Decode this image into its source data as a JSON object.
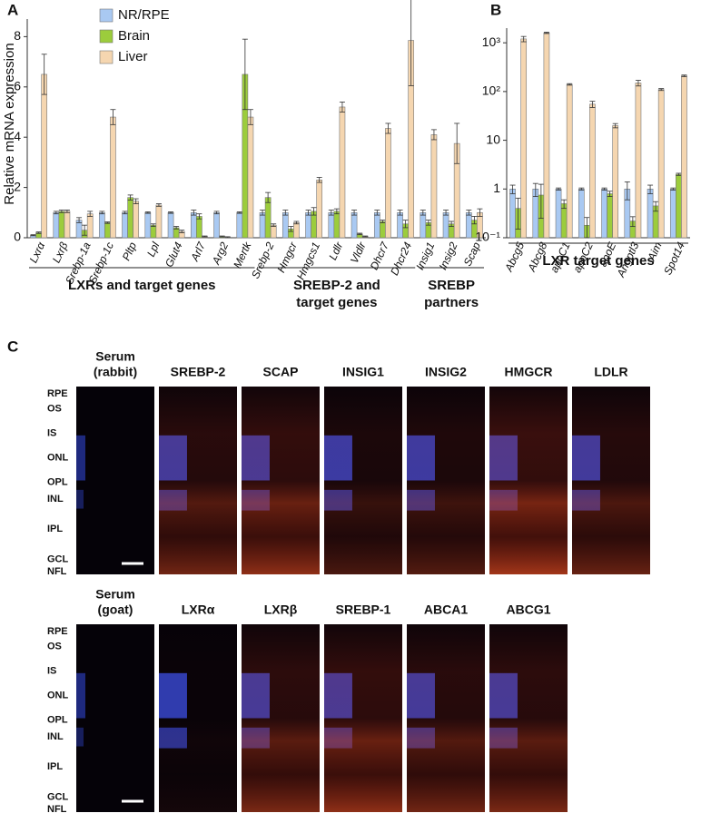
{
  "chart_data": [
    {
      "type": "bar",
      "panel_label": "A",
      "y_label": "Relative mRNA expression",
      "ylim": [
        0,
        8.7
      ],
      "yticks": [
        0,
        2,
        4,
        6,
        8
      ],
      "legend": "top-left",
      "groups": [
        {
          "label": [
            "LXRs and target genes"
          ],
          "categories": [
            "Lxrα",
            "Lxrβ",
            "Srebp-1a",
            "Srebp-1c",
            "Pltp",
            "Lpl",
            "Glut4",
            "Arl7",
            "Arg2",
            "Mertk"
          ]
        },
        {
          "label": [
            "SREBP-2 and",
            "target genes"
          ],
          "categories": [
            "Srebp-2",
            "Hmgcr",
            "Hmgcs1",
            "Ldlr",
            "Vldlr",
            "Dhcr7",
            "Dhcr24"
          ]
        },
        {
          "label": [
            "SREBP",
            "partners"
          ],
          "categories": [
            "Insig1",
            "Insig2",
            "Scap"
          ]
        }
      ],
      "series": [
        {
          "name": "NR/RPE",
          "color": "#a9c9f2",
          "values": [
            0.1,
            1.0,
            0.7,
            1.0,
            1.0,
            1.0,
            1.0,
            1.0,
            1.0,
            1.0,
            1.0,
            1.0,
            1.0,
            1.0,
            1.0,
            1.0,
            1.0,
            1.0,
            1.0,
            1.0
          ],
          "errors": [
            0.02,
            0.05,
            0.1,
            0.05,
            0.05,
            0.03,
            0.03,
            0.1,
            0.05,
            0.03,
            0.1,
            0.1,
            0.1,
            0.1,
            0.1,
            0.1,
            0.1,
            0.1,
            0.1,
            0.1
          ]
        },
        {
          "name": "Brain",
          "color": "#9ccc3c",
          "values": [
            0.2,
            1.05,
            0.3,
            0.6,
            1.6,
            0.5,
            0.4,
            0.85,
            0.05,
            6.5,
            1.6,
            0.35,
            1.05,
            1.05,
            0.15,
            0.65,
            0.55,
            0.6,
            0.55,
            0.7
          ],
          "errors": [
            0.03,
            0.05,
            0.2,
            0.03,
            0.1,
            0.05,
            0.05,
            0.1,
            0.02,
            1.4,
            0.2,
            0.1,
            0.15,
            0.1,
            0.03,
            0.05,
            0.15,
            0.1,
            0.1,
            0.15
          ]
        },
        {
          "name": "Liver",
          "color": "#f5d6b0",
          "values": [
            6.5,
            1.05,
            0.95,
            4.8,
            1.45,
            1.3,
            0.25,
            0.05,
            0.02,
            4.8,
            0.5,
            0.6,
            2.3,
            5.2,
            0.05,
            4.35,
            7.85,
            4.1,
            3.75,
            1.0
          ],
          "errors": [
            0.8,
            0.05,
            0.1,
            0.3,
            0.1,
            0.05,
            0.05,
            0.02,
            0.02,
            0.3,
            0.05,
            0.05,
            0.1,
            0.2,
            0.02,
            0.2,
            1.8,
            0.2,
            0.8,
            0.15
          ]
        }
      ]
    },
    {
      "type": "bar",
      "panel_label": "B",
      "log_scale": true,
      "ylim": [
        0.1,
        2000
      ],
      "yticks": [
        {
          "value": 0.1,
          "label": "10⁻¹"
        },
        1,
        10,
        {
          "value": 100,
          "label": "10²"
        },
        {
          "value": 1000,
          "label": "10³"
        }
      ],
      "groups": [
        {
          "label": [
            "LXR target genes"
          ],
          "categories": [
            "Abcg5",
            "Abcg8",
            "apoC1",
            "apoC2",
            "apoE",
            "Angptl3",
            "Aim",
            "Spot14"
          ]
        }
      ],
      "series": [
        {
          "color": "#a9c9f2",
          "values": [
            1.0,
            1.0,
            1.0,
            1.0,
            1.0,
            1.0,
            1.0,
            1.0
          ],
          "errors": [
            0.2,
            0.3,
            0.05,
            0.05,
            0.05,
            0.4,
            0.2,
            0.05
          ]
        },
        {
          "color": "#9ccc3c",
          "values": [
            0.4,
            0.75,
            0.5,
            0.18,
            0.8,
            0.22,
            0.45,
            2.0
          ],
          "errors": [
            0.25,
            0.5,
            0.1,
            0.08,
            0.1,
            0.05,
            0.1,
            0.1
          ]
        },
        {
          "color": "#f5d6b0",
          "values": [
            1200,
            1600,
            140,
            55,
            20,
            150,
            110,
            210
          ],
          "errors": [
            150,
            50,
            5,
            8,
            2,
            20,
            5,
            8
          ]
        }
      ]
    }
  ],
  "panel_c": {
    "label": "C",
    "rows": [
      {
        "columns": [
          {
            "title": [
              "Serum",
              "(rabbit)"
            ]
          },
          {
            "title": [
              "SREBP-2"
            ]
          },
          {
            "title": [
              "SCAP"
            ]
          },
          {
            "title": [
              "INSIG1"
            ]
          },
          {
            "title": [
              "INSIG2"
            ]
          },
          {
            "title": [
              "HMGCR"
            ]
          },
          {
            "title": [
              "LDLR"
            ]
          }
        ],
        "layers": [
          "RPE",
          "OS",
          "IS",
          "ONL",
          "OPL",
          "INL",
          "IPL",
          "GCL",
          "NFL"
        ]
      },
      {
        "columns": [
          {
            "title": [
              "Serum",
              "(goat)"
            ]
          },
          {
            "title": [
              "LXRα"
            ]
          },
          {
            "title": [
              "LXRβ"
            ]
          },
          {
            "title": [
              "SREBP-1"
            ]
          },
          {
            "title": [
              "ABCA1"
            ]
          },
          {
            "title": [
              "ABCG1"
            ]
          }
        ],
        "layers": [
          "RPE",
          "OS",
          "IS",
          "ONL",
          "OPL",
          "INL",
          "IPL",
          "GCL",
          "NFL"
        ]
      }
    ]
  }
}
